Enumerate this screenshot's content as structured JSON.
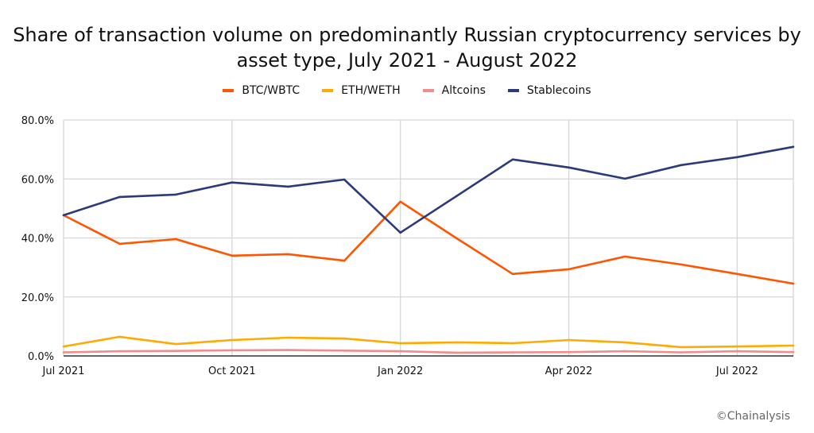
{
  "chart_data": {
    "type": "line",
    "title": "Share of transaction volume on predominantly Russian cryptocurrency services by asset type, July 2021 - August 2022",
    "x": [
      "Jul 2021",
      "Aug 2021",
      "Sep 2021",
      "Oct 2021",
      "Nov 2021",
      "Dec 2021",
      "Jan 2022",
      "Feb 2022",
      "Mar 2022",
      "Apr 2022",
      "May 2022",
      "Jun 2022",
      "Jul 2022",
      "Aug 2022"
    ],
    "x_tick_labels": [
      "Jul 2021",
      "Oct 2021",
      "Jan 2022",
      "Apr 2022",
      "Jul 2022"
    ],
    "y_tick_labels": [
      "0.0%",
      "20.0%",
      "40.0%",
      "60.0%",
      "80.0%"
    ],
    "ylim": [
      0,
      80
    ],
    "grid": true,
    "legend_position": "top",
    "series": [
      {
        "name": "BTC/WBTC",
        "color": "#ff5500",
        "values": [
          47.7,
          38.0,
          39.6,
          34.0,
          34.5,
          32.3,
          52.3,
          39.9,
          27.8,
          29.4,
          33.7,
          31.0,
          27.8,
          24.5
        ]
      },
      {
        "name": "ETH/WETH",
        "color": "#ffaa00",
        "values": [
          3.2,
          6.5,
          4.0,
          5.4,
          6.2,
          5.9,
          4.3,
          4.6,
          4.3,
          5.4,
          4.6,
          3.0,
          3.2,
          3.5
        ]
      },
      {
        "name": "Altcoins",
        "color": "#f28b8b",
        "values": [
          1.2,
          1.6,
          1.7,
          1.9,
          2.0,
          1.8,
          1.6,
          1.1,
          1.2,
          1.3,
          1.6,
          1.2,
          1.6,
          1.3
        ]
      },
      {
        "name": "Stablecoins",
        "color": "#2b3a78",
        "values": [
          47.7,
          53.9,
          54.7,
          58.8,
          57.4,
          59.8,
          41.8,
          54.2,
          66.6,
          63.9,
          60.1,
          64.7,
          67.4,
          70.9
        ]
      }
    ]
  },
  "credit": "©Chainalysis"
}
